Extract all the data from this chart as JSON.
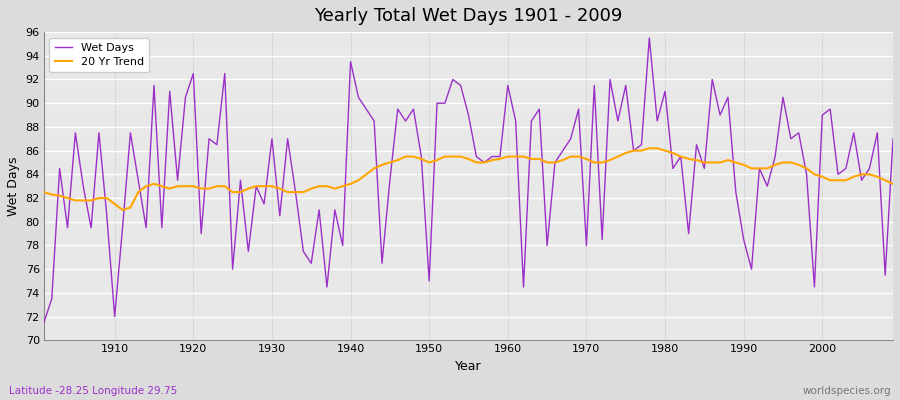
{
  "title": "Yearly Total Wet Days 1901 - 2009",
  "xlabel": "Year",
  "ylabel": "Wet Days",
  "subtitle_left": "Latitude -28.25 Longitude 29.75",
  "subtitle_right": "worldspecies.org",
  "wet_days_color": "#9B30C8",
  "trend_color": "#FFA500",
  "fig_bg_color": "#DCDCDC",
  "plot_bg_color": "#E8E8E8",
  "ylim": [
    70,
    96
  ],
  "xlim": [
    1901,
    2009
  ],
  "xticks": [
    1910,
    1920,
    1930,
    1940,
    1950,
    1960,
    1970,
    1980,
    1990,
    2000
  ],
  "years": [
    1901,
    1902,
    1903,
    1904,
    1905,
    1906,
    1907,
    1908,
    1909,
    1910,
    1911,
    1912,
    1913,
    1914,
    1915,
    1916,
    1917,
    1918,
    1919,
    1920,
    1921,
    1922,
    1923,
    1924,
    1925,
    1926,
    1927,
    1928,
    1929,
    1930,
    1931,
    1932,
    1933,
    1934,
    1935,
    1936,
    1937,
    1938,
    1939,
    1940,
    1941,
    1942,
    1943,
    1944,
    1945,
    1946,
    1947,
    1948,
    1949,
    1950,
    1951,
    1952,
    1953,
    1954,
    1955,
    1956,
    1957,
    1958,
    1959,
    1960,
    1961,
    1962,
    1963,
    1964,
    1965,
    1966,
    1967,
    1968,
    1969,
    1970,
    1971,
    1972,
    1973,
    1974,
    1975,
    1976,
    1977,
    1978,
    1979,
    1980,
    1981,
    1982,
    1983,
    1984,
    1985,
    1986,
    1987,
    1988,
    1989,
    1990,
    1991,
    1992,
    1993,
    1994,
    1995,
    1996,
    1997,
    1998,
    1999,
    2000,
    2001,
    2002,
    2003,
    2004,
    2005,
    2006,
    2007,
    2008,
    2009
  ],
  "wet_days": [
    71.5,
    73.5,
    84.5,
    79.5,
    87.5,
    83.0,
    79.5,
    87.5,
    80.5,
    72.0,
    79.5,
    87.5,
    83.5,
    79.5,
    91.5,
    79.5,
    91.0,
    83.5,
    90.5,
    92.5,
    79.0,
    87.0,
    86.5,
    92.5,
    76.0,
    83.5,
    77.5,
    83.0,
    81.5,
    87.0,
    80.5,
    87.0,
    82.5,
    77.5,
    76.5,
    81.0,
    74.5,
    81.0,
    78.0,
    93.5,
    90.5,
    89.5,
    88.5,
    76.5,
    83.5,
    89.5,
    88.5,
    89.5,
    85.5,
    75.0,
    90.0,
    90.0,
    92.0,
    91.5,
    89.0,
    85.5,
    85.0,
    85.5,
    85.5,
    91.5,
    88.5,
    74.5,
    88.5,
    89.5,
    78.0,
    85.0,
    86.0,
    87.0,
    89.5,
    78.0,
    91.5,
    78.5,
    92.0,
    88.5,
    91.5,
    86.0,
    86.5,
    95.5,
    88.5,
    91.0,
    84.5,
    85.5,
    79.0,
    86.5,
    84.5,
    92.0,
    89.0,
    90.5,
    82.5,
    78.5,
    76.0,
    84.5,
    83.0,
    85.5,
    90.5,
    87.0,
    87.5,
    84.0,
    74.5,
    89.0,
    89.5,
    84.0,
    84.5,
    87.5,
    83.5,
    84.5,
    87.5,
    75.5,
    87.0
  ],
  "trend": [
    82.5,
    82.3,
    82.2,
    82.0,
    81.8,
    81.8,
    81.8,
    82.0,
    82.0,
    81.5,
    81.0,
    81.2,
    82.5,
    83.0,
    83.2,
    83.0,
    82.8,
    83.0,
    83.0,
    83.0,
    82.8,
    82.8,
    83.0,
    83.0,
    82.5,
    82.5,
    82.8,
    83.0,
    83.0,
    83.0,
    82.8,
    82.5,
    82.5,
    82.5,
    82.8,
    83.0,
    83.0,
    82.8,
    83.0,
    83.2,
    83.5,
    84.0,
    84.5,
    84.8,
    85.0,
    85.2,
    85.5,
    85.5,
    85.3,
    85.0,
    85.2,
    85.5,
    85.5,
    85.5,
    85.3,
    85.0,
    85.0,
    85.2,
    85.3,
    85.5,
    85.5,
    85.5,
    85.3,
    85.3,
    85.0,
    85.0,
    85.2,
    85.5,
    85.5,
    85.3,
    85.0,
    85.0,
    85.2,
    85.5,
    85.8,
    86.0,
    86.0,
    86.2,
    86.2,
    86.0,
    85.8,
    85.5,
    85.3,
    85.2,
    85.0,
    85.0,
    85.0,
    85.2,
    85.0,
    84.8,
    84.5,
    84.5,
    84.5,
    84.8,
    85.0,
    85.0,
    84.8,
    84.5,
    84.0,
    83.8,
    83.5,
    83.5,
    83.5,
    83.8,
    84.0,
    84.0,
    83.8,
    83.5,
    83.2
  ]
}
